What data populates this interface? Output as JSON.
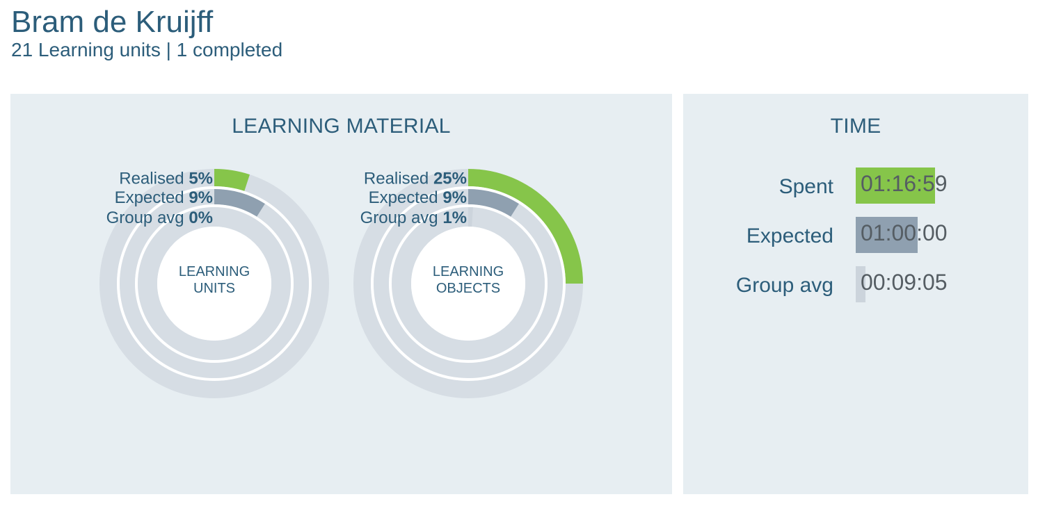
{
  "header": {
    "title": "Bram de Kruijff",
    "subtitle": "21 Learning units | 1 completed"
  },
  "learning_material": {
    "heading": "LEARNING MATERIAL",
    "charts": [
      {
        "center_line1": "LEARNING",
        "center_line2": "UNITS",
        "rings": [
          {
            "label": "Realised",
            "value_text": "5%",
            "value": 5,
            "color": "#86c54a"
          },
          {
            "label": "Expected",
            "value_text": "9%",
            "value": 9,
            "color": "#8fa0b0"
          },
          {
            "label": "Group avg",
            "value_text": "0%",
            "value": 0,
            "color": "#ccd4dc"
          }
        ]
      },
      {
        "center_line1": "LEARNING",
        "center_line2": "OBJECTS",
        "rings": [
          {
            "label": "Realised",
            "value_text": "25%",
            "value": 25,
            "color": "#86c54a"
          },
          {
            "label": "Expected",
            "value_text": "9%",
            "value": 9,
            "color": "#8fa0b0"
          },
          {
            "label": "Group avg",
            "value_text": "1%",
            "value": 1,
            "color": "#ccd4dc"
          }
        ]
      }
    ]
  },
  "time": {
    "heading": "TIME",
    "rows": [
      {
        "label": "Spent",
        "value": "01:16:59",
        "fraction": 0.76,
        "color": "#86c54a"
      },
      {
        "label": "Expected",
        "value": "01:00:00",
        "fraction": 0.59,
        "color": "#8fa0b0"
      },
      {
        "label": "Group avg",
        "value": "00:09:05",
        "fraction": 0.09,
        "color": "#ccd4dc"
      }
    ]
  },
  "colors": {
    "track": "#d6dde4",
    "text": "#2c5d7a",
    "panel": "#e7eef2"
  }
}
